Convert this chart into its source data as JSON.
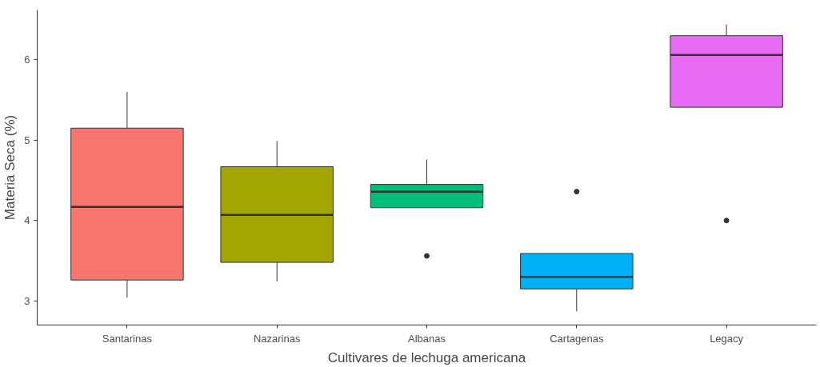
{
  "chart_data": {
    "type": "box",
    "xlabel": "Cultivares de lechuga americana",
    "ylabel": "Materia Seca (%)",
    "categories": [
      "Santarinas",
      "Nazarinas",
      "Albanas",
      "Cartagenas",
      "Legacy"
    ],
    "colors": [
      "#f8766d",
      "#a3a500",
      "#00bf7d",
      "#00b0f6",
      "#e76bf3"
    ],
    "boxes": [
      {
        "low": 3.04,
        "q1": 3.26,
        "median": 4.17,
        "q3": 5.15,
        "high": 5.6
      },
      {
        "low": 3.24,
        "q1": 3.48,
        "median": 4.07,
        "q3": 4.67,
        "high": 4.99
      },
      {
        "low": 4.16,
        "q1": 4.16,
        "median": 4.36,
        "q3": 4.45,
        "high": 4.76,
        "outliers": [
          3.56
        ]
      },
      {
        "low": 2.87,
        "q1": 3.15,
        "median": 3.3,
        "q3": 3.59,
        "high": 3.59,
        "outliers": [
          4.36
        ]
      },
      {
        "low": 5.41,
        "q1": 5.41,
        "median": 6.06,
        "q3": 6.3,
        "high": 6.44,
        "outliers": [
          4.0
        ]
      }
    ],
    "ylim": [
      2.7,
      6.62
    ],
    "yticks": [
      3,
      4,
      5,
      6
    ],
    "grid": false
  }
}
